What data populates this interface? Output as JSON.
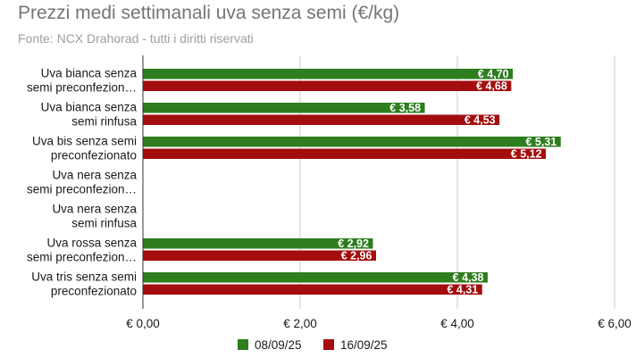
{
  "chart_data": {
    "type": "bar",
    "orientation": "horizontal",
    "title": "Prezzi medi settimanali uva senza semi (€/kg)",
    "subtitle": "Fonte: NCX Drahorad - tutti i diritti riservati",
    "categories": [
      [
        "Uva bianca senza",
        "semi preconfezion…"
      ],
      [
        "Uva bianca senza",
        "semi rinfusa"
      ],
      [
        "Uva bis senza semi",
        "preconfezionato"
      ],
      [
        "Uva nera senza",
        "semi preconfezion…"
      ],
      [
        "Uva nera senza",
        "semi rinfusa"
      ],
      [
        "Uva rossa senza",
        "semi preconfezion…"
      ],
      [
        "Uva tris senza semi",
        "preconfezionato"
      ]
    ],
    "series": [
      {
        "name": "08/09/25",
        "color": "#2e7d1f",
        "values": [
          4.7,
          3.58,
          5.31,
          null,
          null,
          2.92,
          4.38
        ],
        "labels": [
          "€ 4,70",
          "€ 3,58",
          "€ 5,31",
          null,
          null,
          "€ 2,92",
          "€ 4,38"
        ]
      },
      {
        "name": "16/09/25",
        "color": "#a30d0d",
        "values": [
          4.68,
          4.53,
          5.12,
          null,
          null,
          2.96,
          4.31
        ],
        "labels": [
          "€ 4,68",
          "€ 4,53",
          "€ 5,12",
          null,
          null,
          "€ 2,96",
          "€ 4,31"
        ]
      }
    ],
    "xlim": [
      0,
      6
    ],
    "xticks": [
      0,
      2,
      4,
      6
    ],
    "xtick_labels": [
      "€ 0,00",
      "€ 2,00",
      "€ 4,00",
      "€ 6,00"
    ],
    "grid": true,
    "legend_position": "bottom"
  }
}
